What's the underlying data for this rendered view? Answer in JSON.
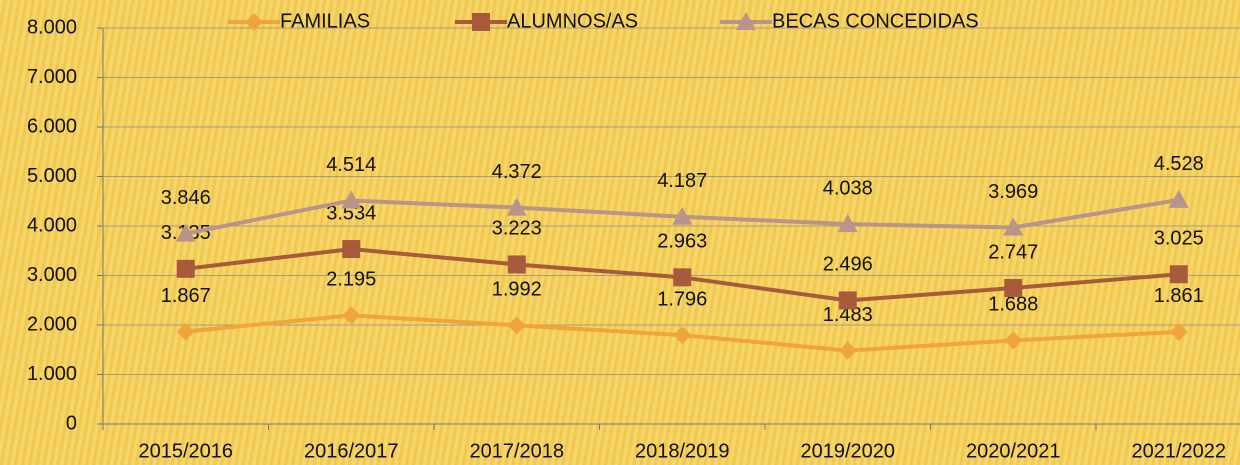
{
  "chart_data": {
    "type": "line",
    "categories": [
      "2015/2016",
      "2016/2017",
      "2017/2018",
      "2018/2019",
      "2019/2020",
      "2020/2021",
      "2021/2022"
    ],
    "series": [
      {
        "name": "FAMILIAS",
        "color": "#f0a43a",
        "marker": "diamond",
        "values": [
          1867,
          2195,
          1992,
          1796,
          1483,
          1688,
          1861
        ],
        "value_labels": [
          "1.867",
          "2.195",
          "1.992",
          "1.796",
          "1.483",
          "1.688",
          "1.861"
        ]
      },
      {
        "name": "ALUMNOS/AS",
        "color": "#a85a3c",
        "marker": "square",
        "values": [
          3135,
          3534,
          3223,
          2963,
          2496,
          2747,
          3025
        ],
        "value_labels": [
          "3.135",
          "3.534",
          "3.223",
          "2.963",
          "2.496",
          "2.747",
          "3.025"
        ]
      },
      {
        "name": "BECAS CONCEDIDAS",
        "color": "#b8948a",
        "marker": "triangle",
        "values": [
          3846,
          4514,
          4372,
          4187,
          4038,
          3969,
          4528
        ],
        "value_labels": [
          "3.846",
          "4.514",
          "4.372",
          "4.187",
          "4.038",
          "3.969",
          "4.528"
        ]
      }
    ],
    "ylim": [
      0,
      8000
    ],
    "yticks": [
      0,
      {
        "value": 1000,
        "label": "1.000"
      },
      {
        "value": 2000,
        "label": "2.000"
      },
      {
        "value": 3000,
        "label": "3.000"
      },
      {
        "value": 4000,
        "label": "4.000"
      },
      {
        "value": 5000,
        "label": "5.000"
      },
      {
        "value": 6000,
        "label": "6.000"
      },
      {
        "value": 7000,
        "label": "7.000"
      },
      {
        "value": 8000,
        "label": "8.000"
      }
    ],
    "grid": true,
    "legend": "top"
  }
}
